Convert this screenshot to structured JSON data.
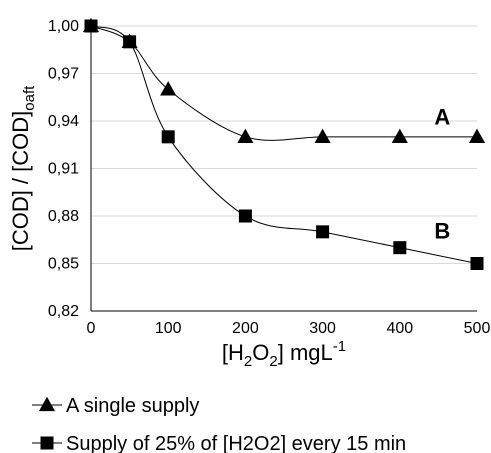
{
  "chart_data": {
    "type": "line",
    "title": "",
    "x_axis": {
      "label_parts": [
        "[H",
        "2",
        "O",
        "2",
        "] mgL",
        "-1"
      ],
      "min": 0,
      "max": 500,
      "ticks": [
        0,
        100,
        200,
        300,
        400,
        500
      ],
      "tick_labels": [
        "0",
        "100",
        "200",
        "300",
        "400",
        "500"
      ]
    },
    "y_axis": {
      "label_parts": [
        "[COD] / [COD]",
        "oaft"
      ],
      "min": 0.82,
      "max": 1.0,
      "ticks": [
        0.82,
        0.85,
        0.88,
        0.91,
        0.94,
        0.97,
        1.0
      ],
      "tick_labels": [
        "0,82",
        "0,85",
        "0,88",
        "0,91",
        "0,94",
        "0,97",
        "1,00"
      ]
    },
    "grid": {
      "horizontal": true,
      "vertical": false
    },
    "legend_position": "bottom",
    "series": [
      {
        "name": "A single supply",
        "annotation": "A",
        "marker": "triangle",
        "color": "#000000",
        "x": [
          0,
          50,
          100,
          200,
          300,
          400,
          500
        ],
        "y": [
          1.0,
          0.99,
          0.96,
          0.93,
          0.93,
          0.93,
          0.93
        ],
        "annotation_point": {
          "x": 455,
          "y": 0.943
        }
      },
      {
        "name": "Supply of 25% of [H2O2] every 15 min",
        "annotation": "B",
        "marker": "square",
        "color": "#000000",
        "x": [
          0,
          50,
          100,
          200,
          300,
          400,
          500
        ],
        "y": [
          1.0,
          0.99,
          0.93,
          0.88,
          0.87,
          0.86,
          0.85
        ],
        "annotation_point": {
          "x": 455,
          "y": 0.871
        }
      }
    ]
  }
}
